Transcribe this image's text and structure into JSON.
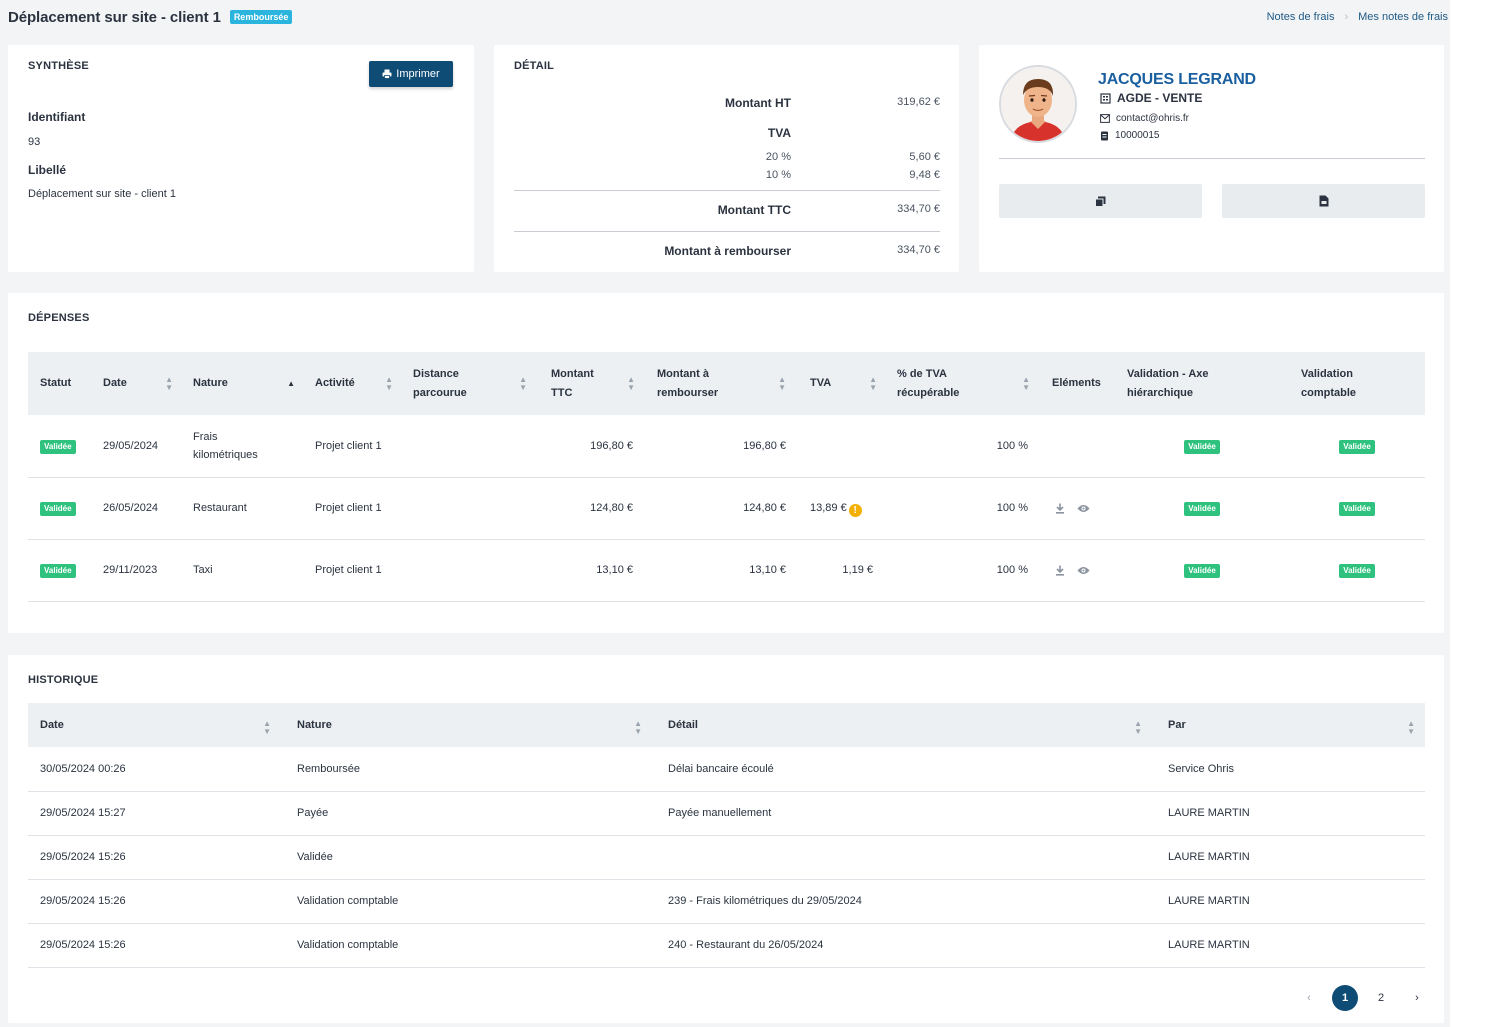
{
  "header": {
    "title": "Déplacement sur site - client 1",
    "status_badge": "Remboursée",
    "breadcrumb": [
      "Notes de frais",
      "Mes notes de frais"
    ]
  },
  "synthese": {
    "title": "SYNTHÈSE",
    "print_label": "Imprimer",
    "id_label": "Identifiant",
    "id_value": "93",
    "libelle_label": "Libellé",
    "libelle_value": "Déplacement sur site - client 1"
  },
  "detail": {
    "title": "DÉTAIL",
    "montant_ht_label": "Montant HT",
    "montant_ht_value": "319,62 €",
    "tva_label": "TVA",
    "tva_rows": [
      {
        "rate": "20 %",
        "amount": "5,60 €"
      },
      {
        "rate": "10 %",
        "amount": "9,48 €"
      }
    ],
    "montant_ttc_label": "Montant TTC",
    "montant_ttc_value": "334,70 €",
    "rembourser_label": "Montant à rembourser",
    "rembourser_value": "334,70 €"
  },
  "employee": {
    "name": "JACQUES LEGRAND",
    "site": "AGDE - VENTE",
    "email": "contact@ohris.fr",
    "id": "10000015"
  },
  "depenses": {
    "title": "DÉPENSES",
    "headers": [
      "Statut",
      "Date",
      "Nature",
      "Activité",
      "Distance parcourue",
      "Montant TTC",
      "Montant à rembourser",
      "TVA",
      "% de TVA récupérable",
      "Eléments",
      "Validation - Axe hiérarchique",
      "Validation comptable"
    ],
    "rows": [
      {
        "statut": "Validée",
        "date": "29/05/2024",
        "nature": "Frais kilométriques",
        "activite": "Projet client 1",
        "distance": "",
        "ttc": "196,80 €",
        "rembourser": "196,80 €",
        "tva": "",
        "tva_warning": false,
        "pct": "100 %",
        "has_elements": false,
        "val_hier": "Validée",
        "val_compta": "Validée"
      },
      {
        "statut": "Validée",
        "date": "26/05/2024",
        "nature": "Restaurant",
        "activite": "Projet client 1",
        "distance": "",
        "ttc": "124,80 €",
        "rembourser": "124,80 €",
        "tva": "13,89 €",
        "tva_warning": true,
        "pct": "100 %",
        "has_elements": true,
        "val_hier": "Validée",
        "val_compta": "Validée"
      },
      {
        "statut": "Validée",
        "date": "29/11/2023",
        "nature": "Taxi",
        "activite": "Projet client 1",
        "distance": "",
        "ttc": "13,10 €",
        "rembourser": "13,10 €",
        "tva": "1,19 €",
        "tva_warning": false,
        "pct": "100 %",
        "has_elements": true,
        "val_hier": "Validée",
        "val_compta": "Validée"
      }
    ]
  },
  "historique": {
    "title": "HISTORIQUE",
    "headers": [
      "Date",
      "Nature",
      "Détail",
      "Par"
    ],
    "rows": [
      {
        "date": "30/05/2024 00:26",
        "nature": "Remboursée",
        "detail": "Délai bancaire écoulé",
        "par": "Service Ohris"
      },
      {
        "date": "29/05/2024 15:27",
        "nature": "Payée",
        "detail": "Payée manuellement",
        "par": "LAURE MARTIN"
      },
      {
        "date": "29/05/2024 15:26",
        "nature": "Validée",
        "detail": "",
        "par": "LAURE MARTIN"
      },
      {
        "date": "29/05/2024 15:26",
        "nature": "Validation comptable",
        "detail": "239 - Frais kilométriques du 29/05/2024",
        "par": "LAURE MARTIN"
      },
      {
        "date": "29/05/2024 15:26",
        "nature": "Validation comptable",
        "detail": "240 - Restaurant du 26/05/2024",
        "par": "LAURE MARTIN"
      }
    ],
    "pagination": {
      "pages": [
        "1",
        "2"
      ],
      "current": "1"
    }
  }
}
